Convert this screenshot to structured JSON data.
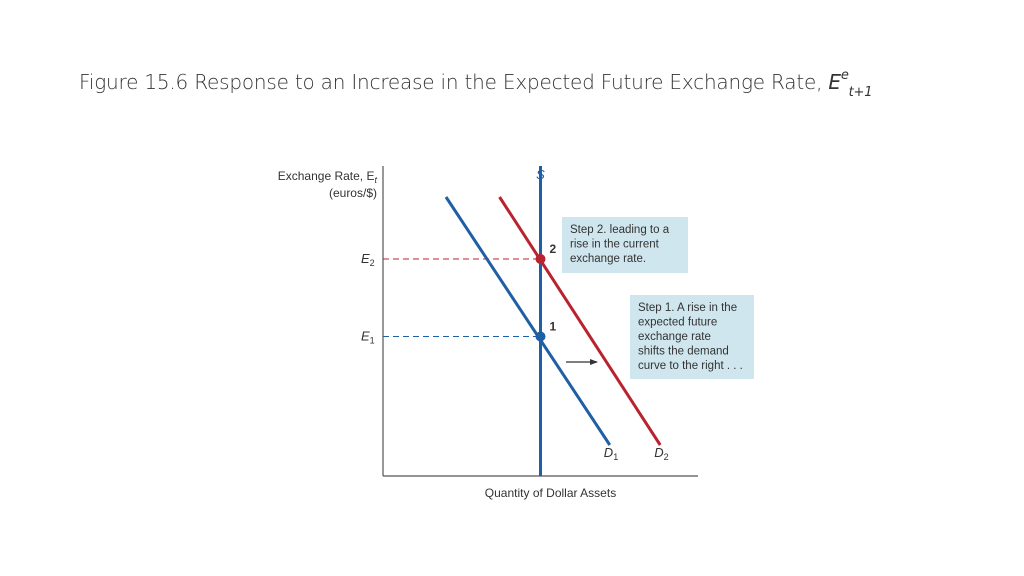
{
  "title": {
    "prefix": "Figure 15.6 Response to an Increase in the Expected Future Exchange Rate, ",
    "symbol": "E",
    "superscript": "e",
    "subscript": "t+1"
  },
  "colors": {
    "demand_blue": "#1f5fa3",
    "demand_red": "#b8232f",
    "box_fill": "#cfe6ee",
    "axis": "#555555",
    "text": "#333333"
  },
  "chart_data": {
    "type": "line",
    "ylabel": "Exchange Rate, E",
    "ylabel_subscript": "t",
    "ylabel_units": "(euros/$)",
    "xlabel": "Quantity of Dollar Assets",
    "y_ticks": [
      {
        "name": "E",
        "sub": "2",
        "value": 7,
        "color": "#b8232f"
      },
      {
        "name": "E",
        "sub": "1",
        "value": 4.5,
        "color": "#1f5fa3"
      }
    ],
    "xlim": [
      0,
      10
    ],
    "ylim": [
      0,
      10
    ],
    "series": [
      {
        "name": "S",
        "color": "#1f5fa3",
        "points": [
          [
            5,
            0
          ],
          [
            5,
            10
          ]
        ]
      },
      {
        "name": "D",
        "sub": "1",
        "color": "#1f5fa3",
        "points": [
          [
            2,
            9
          ],
          [
            7.2,
            1
          ]
        ]
      },
      {
        "name": "D",
        "sub": "2",
        "color": "#b8232f",
        "points": [
          [
            3.7,
            9
          ],
          [
            8.8,
            1
          ]
        ]
      }
    ],
    "equilibria": [
      {
        "label": "1",
        "x": 5,
        "y": 4.5,
        "color": "#1f5fa3"
      },
      {
        "label": "2",
        "x": 5,
        "y": 7,
        "color": "#b8232f"
      }
    ],
    "annotations": [
      {
        "lines": [
          "Step 2. leading to a",
          "rise in the current",
          "exchange rate."
        ]
      },
      {
        "lines": [
          "Step 1. A rise in the",
          "expected future",
          "exchange rate",
          "shifts the demand",
          "curve to the right . . ."
        ]
      }
    ]
  }
}
